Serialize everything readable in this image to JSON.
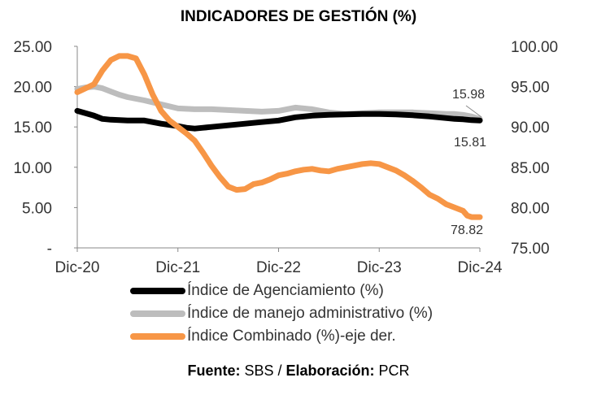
{
  "chart_data": {
    "type": "line",
    "title": "INDICADORES DE GESTIÓN (%)",
    "x_ticks": [
      "Dic-20",
      "Dic-21",
      "Dic-22",
      "Dic-23",
      "Dic-24"
    ],
    "y_left_ticks": [
      "25.00",
      "20.00",
      "15.00",
      "10.00",
      "5.00",
      "-"
    ],
    "y_right_ticks": [
      "100.00",
      "95.00",
      "90.00",
      "85.00",
      "80.00",
      "75.00"
    ],
    "ylim_left": [
      0,
      25
    ],
    "ylim_right": [
      75,
      100
    ],
    "x_domain_months": [
      0,
      48
    ],
    "grid": false,
    "legend_position": "bottom",
    "series": [
      {
        "name": "Índice de Agenciamiento (%)",
        "axis": "left",
        "color": "#000000",
        "x": [
          0,
          2,
          3,
          4,
          6,
          8,
          10,
          12,
          13,
          14,
          15,
          16,
          18,
          20,
          22,
          24,
          26,
          28,
          30,
          32,
          34,
          36,
          38,
          40,
          42,
          44,
          45,
          46,
          47,
          48
        ],
        "values": [
          17.0,
          16.4,
          16.0,
          15.9,
          15.8,
          15.8,
          15.4,
          15.1,
          14.9,
          14.8,
          14.9,
          15.0,
          15.2,
          15.4,
          15.6,
          15.8,
          16.2,
          16.4,
          16.5,
          16.55,
          16.6,
          16.6,
          16.55,
          16.45,
          16.3,
          16.1,
          16.0,
          15.95,
          15.85,
          15.81
        ]
      },
      {
        "name": "Índice de manejo administrativo (%)",
        "axis": "left",
        "color": "#BDBDBD",
        "x": [
          0,
          1,
          2,
          3,
          4,
          5,
          6,
          8,
          10,
          12,
          14,
          16,
          18,
          20,
          22,
          24,
          26,
          28,
          30,
          32,
          34,
          36,
          38,
          40,
          42,
          44,
          45,
          46,
          47,
          48
        ],
        "values": [
          19.7,
          19.9,
          20.0,
          19.8,
          19.4,
          19.0,
          18.7,
          18.3,
          17.8,
          17.3,
          17.2,
          17.2,
          17.1,
          17.0,
          16.9,
          17.0,
          17.4,
          17.2,
          16.8,
          16.6,
          16.7,
          16.8,
          16.8,
          16.8,
          16.7,
          16.6,
          16.6,
          16.5,
          16.3,
          15.98
        ]
      },
      {
        "name": "Índice Combinado (%)-eje der.",
        "axis": "right",
        "color": "#F79646",
        "x": [
          0,
          1,
          2,
          3,
          4,
          5,
          6,
          7,
          8,
          9,
          10,
          11,
          12,
          13,
          14,
          15,
          16,
          17,
          18,
          19,
          20,
          21,
          22,
          23,
          24,
          25,
          26,
          27,
          28,
          29,
          30,
          31,
          32,
          33,
          34,
          35,
          36,
          37,
          38,
          39,
          40,
          41,
          42,
          43,
          44,
          45,
          46,
          46.5,
          47,
          48
        ],
        "values": [
          94.3,
          94.8,
          95.3,
          97.0,
          98.3,
          98.8,
          98.8,
          98.5,
          96.5,
          94.0,
          92.0,
          90.8,
          90.0,
          89.2,
          88.3,
          86.8,
          85.2,
          83.8,
          82.6,
          82.2,
          82.3,
          82.9,
          83.1,
          83.5,
          84.0,
          84.2,
          84.5,
          84.7,
          84.8,
          84.6,
          84.5,
          84.8,
          85.0,
          85.2,
          85.4,
          85.5,
          85.4,
          85.0,
          84.6,
          84.0,
          83.3,
          82.5,
          81.6,
          81.1,
          80.4,
          80.0,
          79.6,
          79.0,
          78.82,
          78.82
        ]
      }
    ],
    "annotations": [
      {
        "text": "15.98",
        "series": 1
      },
      {
        "text": "15.81",
        "series": 0
      },
      {
        "text": "78.82",
        "series": 2
      }
    ],
    "source_label_1": "Fuente:",
    "source_text_1": " SBS / ",
    "source_label_2": "Elaboración:",
    "source_text_2": " PCR"
  }
}
